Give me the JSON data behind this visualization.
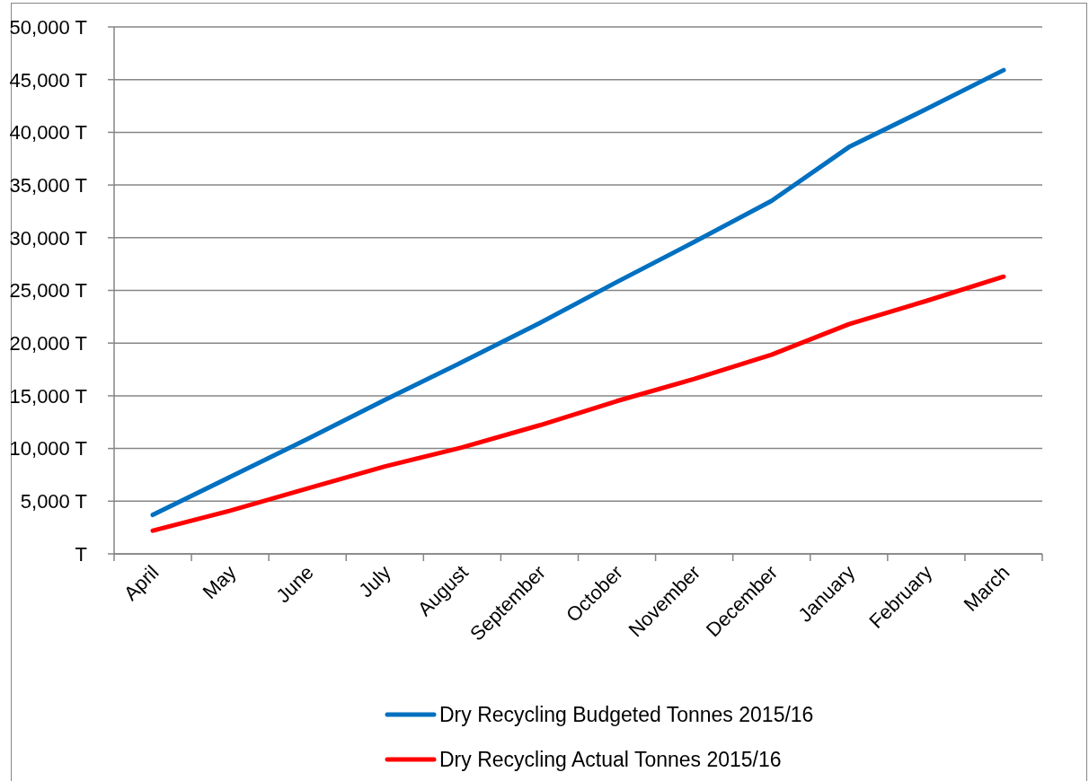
{
  "chart_data": {
    "type": "line",
    "categories": [
      "April",
      "May",
      "June",
      "July",
      "August",
      "September",
      "October",
      "November",
      "December",
      "January",
      "February",
      "March"
    ],
    "series": [
      {
        "name": "Dry Recycling Budgeted Tonnes 2015/16",
        "color": "#0070c0",
        "values": [
          3700,
          7300,
          10900,
          14600,
          18200,
          21900,
          25800,
          29600,
          33500,
          38600,
          42200,
          45900
        ]
      },
      {
        "name": "Dry Recycling Actual Tonnes 2015/16",
        "color": "#ff0000",
        "values": [
          2200,
          4100,
          6200,
          8300,
          10100,
          12200,
          14500,
          16600,
          18900,
          21800,
          24000,
          26300
        ]
      }
    ],
    "ylim": [
      0,
      50000
    ],
    "yticks": [
      {
        "value": 0,
        "label": "T"
      },
      {
        "value": 5000,
        "label": "5,000 T"
      },
      {
        "value": 10000,
        "label": "10,000 T"
      },
      {
        "value": 15000,
        "label": "15,000 T"
      },
      {
        "value": 20000,
        "label": "20,000 T"
      },
      {
        "value": 25000,
        "label": "25,000 T"
      },
      {
        "value": 30000,
        "label": "30,000 T"
      },
      {
        "value": 35000,
        "label": "35,000 T"
      },
      {
        "value": 40000,
        "label": "40,000 T"
      },
      {
        "value": 45000,
        "label": "45,000 T"
      },
      {
        "value": 50000,
        "label": "50,000 T"
      }
    ],
    "grid": "y",
    "legend": "bottom",
    "marker": "none",
    "line_style": "solid"
  }
}
